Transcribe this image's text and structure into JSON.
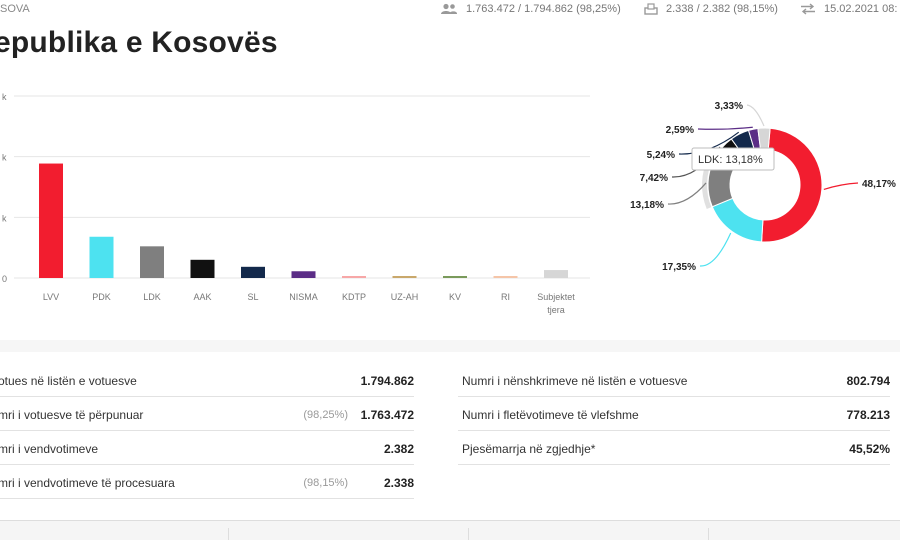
{
  "header": {
    "breadcrumb": "SOVA",
    "voters_stat": "1.763.472 / 1.794.862 (98,25%)",
    "stations_stat": "2.338 / 2.382 (98,15%)",
    "updated_stat": "15.02.2021 08:"
  },
  "page_title": "epublika e Kosovës",
  "chart_data": [
    {
      "type": "bar",
      "categories": [
        "LVV",
        "PDK",
        "LDK",
        "AAK",
        "SL",
        "NISMA",
        "KDTP",
        "UZ-AH",
        "KV",
        "RI",
        "Subjektet tjera"
      ],
      "values": [
        849000,
        306000,
        235000,
        135000,
        83000,
        50000,
        12000,
        11000,
        11000,
        7000,
        59000
      ],
      "colors": [
        "#f21d2f",
        "#4de2f0",
        "#7f7f7f",
        "#111111",
        "#13294b",
        "#5b2d86",
        "#f7a7a7",
        "#c9a86b",
        "#7a9a5b",
        "#f5c5a8",
        "#d6d6d6"
      ],
      "y_tick_labels": [
        "k",
        "k",
        "k",
        "0"
      ],
      "ylim": [
        0,
        1350000
      ],
      "grid": true
    },
    {
      "type": "pie",
      "labels": [
        "LVV",
        "PDK",
        "LDK",
        "AAK",
        "SL",
        "NISMA",
        "Subjektet tjera"
      ],
      "values": [
        48.17,
        17.35,
        13.18,
        7.42,
        5.24,
        2.59,
        3.33
      ],
      "value_labels": [
        "48,17%",
        "17,35%",
        "13,18%",
        "7,42%",
        "5,24%",
        "2,59%",
        "3,33%"
      ],
      "colors": [
        "#f21d2f",
        "#4de2f0",
        "#7f7f7f",
        "#111111",
        "#13294b",
        "#5b2d86",
        "#d6d6d6"
      ],
      "tooltip": "LDK: 13,18%"
    }
  ],
  "stats_left": [
    {
      "label": "otues në listën e votuesve",
      "pct": "",
      "value": "1.794.862"
    },
    {
      "label": "mri i votuesve të përpunuar",
      "pct": "(98,25%)",
      "value": "1.763.472"
    },
    {
      "label": "mri i vendvotimeve",
      "pct": "",
      "value": "2.382"
    },
    {
      "label": "mri i vendvotimeve të procesuara",
      "pct": "(98,15%)",
      "value": "2.338"
    }
  ],
  "stats_right": [
    {
      "label": "Numri i nënshkrimeve në listën e votuesve",
      "value": "802.794"
    },
    {
      "label": "Numri i fletëvotimeve të vlefshme",
      "value": "778.213"
    },
    {
      "label": "Pjesëmarrja në zgjedhje*",
      "value": "45,52%"
    }
  ]
}
